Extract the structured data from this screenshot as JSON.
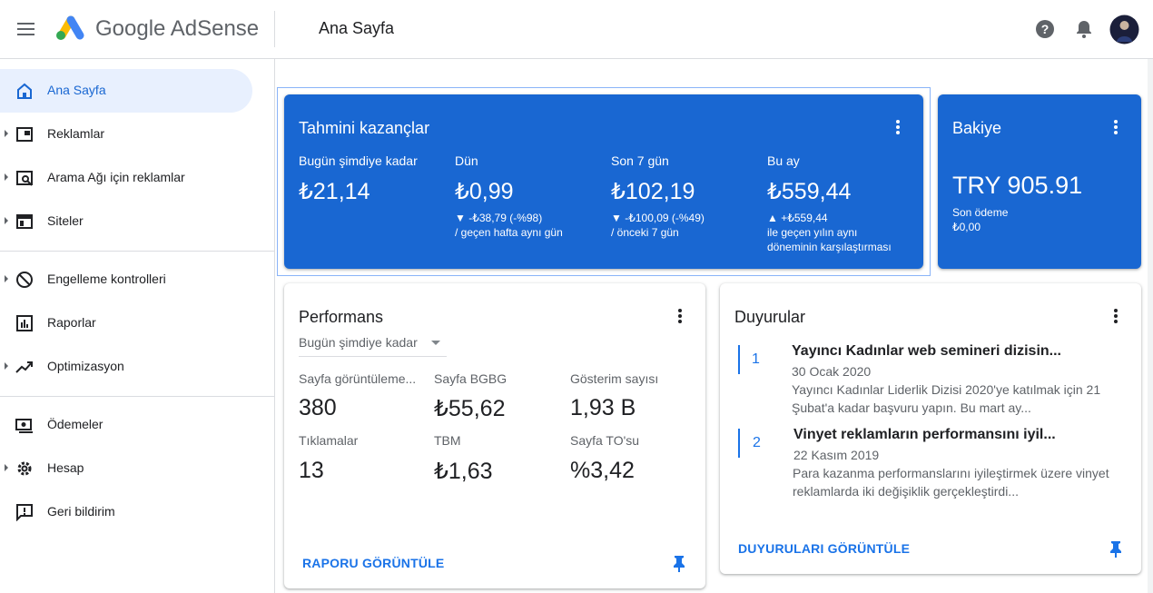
{
  "header": {
    "brand": "Google AdSense",
    "page_title": "Ana Sayfa"
  },
  "nav": {
    "items": [
      "Ana Sayfa",
      "Reklamlar",
      "Arama Ağı için reklamlar",
      "Siteler",
      "Engelleme kontrolleri",
      "Raporlar",
      "Optimizasyon",
      "Ödemeler",
      "Hesap",
      "Geri bildirim"
    ]
  },
  "earnings": {
    "title": "Tahmini kazançlar",
    "columns": [
      {
        "label": "Bugün şimdiye kadar",
        "amount": "₺21,14"
      },
      {
        "label": "Dün",
        "amount": "₺0,99",
        "change": "▼ -₺38,79 (-%98)",
        "compare": "/ geçen hafta aynı gün"
      },
      {
        "label": "Son 7 gün",
        "amount": "₺102,19",
        "change": "▼ -₺100,09 (-%49)",
        "compare": "/ önceki 7 gün"
      },
      {
        "label": "Bu ay",
        "amount": "₺559,44",
        "change": "▲ +₺559,44",
        "compare": "ile geçen yılın aynı",
        "compare2": "döneminin karşılaştırması"
      }
    ]
  },
  "balance": {
    "title": "Bakiye",
    "amount": "TRY 905.91",
    "last_payment_label": "Son ödeme",
    "last_payment": "₺0,00"
  },
  "performance": {
    "title": "Performans",
    "period": "Bugün şimdiye kadar",
    "metrics": [
      {
        "label": "Sayfa görüntüleme...",
        "value": "380"
      },
      {
        "label": "Sayfa BGBG",
        "value": "₺55,62"
      },
      {
        "label": "Gösterim sayısı",
        "value": "1,93 B"
      },
      {
        "label": "Tıklamalar",
        "value": "13"
      },
      {
        "label": "TBM",
        "value": "₺1,63"
      },
      {
        "label": "Sayfa TO'su",
        "value": "%3,42"
      }
    ],
    "link": "RAPORU GÖRÜNTÜLE"
  },
  "announcements": {
    "title": "Duyurular",
    "items": [
      {
        "number": "1",
        "title": "Yayıncı Kadınlar web semineri dizisin...",
        "date": "30 Ocak 2020",
        "text": "Yayıncı Kadınlar Liderlik Dizisi 2020'ye katılmak için 21 Şubat'a kadar başvuru yapın. Bu mart ay..."
      },
      {
        "number": "2",
        "title": "Vinyet reklamların performansını iyil...",
        "date": "22 Kasım 2019",
        "text": "Para kazanma performanslarını iyileştirmek üzere vinyet reklamlarda iki değişiklik gerçekleştirdi..."
      }
    ],
    "link": "DUYURULARI GÖRÜNTÜLE"
  }
}
